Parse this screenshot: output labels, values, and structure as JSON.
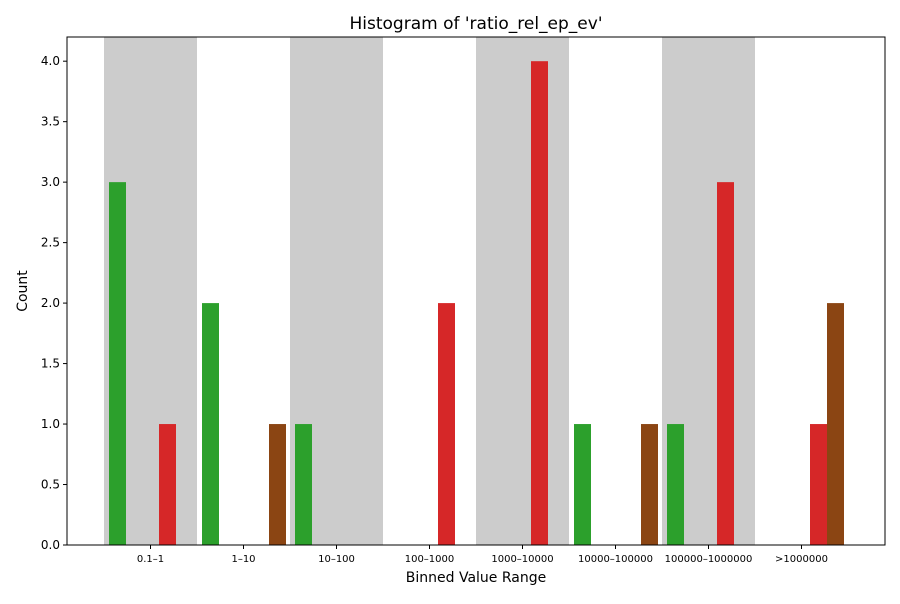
{
  "chart_data": {
    "type": "bar",
    "title": "Histogram of 'ratio_rel_ep_ev'",
    "xlabel": "Binned Value Range",
    "ylabel": "Count",
    "ylim": [
      0,
      4.2
    ],
    "yticks": [
      "0.0",
      "0.5",
      "1.0",
      "1.5",
      "2.0",
      "2.5",
      "3.0",
      "3.5",
      "4.0"
    ],
    "categories": [
      "0.1–1",
      "1–10",
      "10–100",
      "100–1000",
      "1000–10000",
      "10000–100000",
      "100000–1000000",
      ">1000000"
    ],
    "shaded_categories": [
      0,
      2,
      4,
      6
    ],
    "series": [
      {
        "color": "#2ca02c",
        "values": [
          3,
          2,
          1,
          0,
          0,
          1,
          1,
          0
        ]
      },
      {
        "color": "#d62728",
        "values": [
          1,
          0,
          0,
          2,
          4,
          0,
          3,
          1
        ]
      },
      {
        "color": "#8b4513",
        "values": [
          0,
          1,
          0,
          0,
          0,
          1,
          0,
          2
        ]
      }
    ],
    "colors": {
      "shade": "#cccccc",
      "axis": "#000000"
    },
    "grid": false,
    "legend": "none"
  }
}
